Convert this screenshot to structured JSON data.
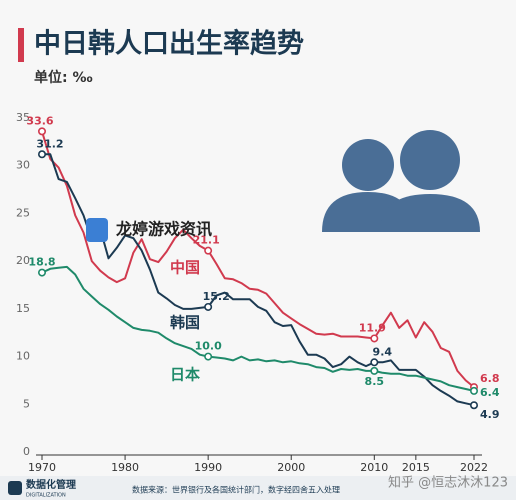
{
  "chart_data": {
    "type": "line",
    "title": "中日韩人口出生率趋势",
    "subtitle": "单位: ‰",
    "x": [
      1970,
      1971,
      1972,
      1973,
      1974,
      1975,
      1976,
      1977,
      1978,
      1979,
      1980,
      1981,
      1982,
      1983,
      1984,
      1985,
      1986,
      1987,
      1988,
      1989,
      1990,
      1991,
      1992,
      1993,
      1994,
      1995,
      1996,
      1997,
      1998,
      1999,
      2000,
      2001,
      2002,
      2003,
      2004,
      2005,
      2006,
      2007,
      2008,
      2009,
      2010,
      2011,
      2012,
      2013,
      2014,
      2015,
      2016,
      2017,
      2018,
      2019,
      2020,
      2021,
      2022
    ],
    "xlim": [
      1970,
      2022
    ],
    "xticks": [
      1970,
      1980,
      1990,
      2000,
      2010,
      2015,
      2022
    ],
    "ylim": [
      0,
      35
    ],
    "yticks": [
      0,
      5,
      10,
      15,
      20,
      25,
      30,
      35
    ],
    "grid": false,
    "series": [
      {
        "name": "中国",
        "color": "#d13a4e",
        "values": [
          33.6,
          30.7,
          29.8,
          27.9,
          24.8,
          23.0,
          20.0,
          19.0,
          18.3,
          17.8,
          18.2,
          20.9,
          22.3,
          20.2,
          19.9,
          21.0,
          22.4,
          23.3,
          22.4,
          21.6,
          21.1,
          19.7,
          18.2,
          18.1,
          17.7,
          17.1,
          17.0,
          16.6,
          15.6,
          14.6,
          14.0,
          13.4,
          12.9,
          12.4,
          12.3,
          12.4,
          12.1,
          12.1,
          12.1,
          12.0,
          11.9,
          13.3,
          14.6,
          13.0,
          13.8,
          12.0,
          13.6,
          12.6,
          10.9,
          10.5,
          8.5,
          7.5,
          6.8
        ],
        "value_labels": [
          "33.6",
          null,
          null,
          null,
          null,
          null,
          null,
          null,
          null,
          null,
          null,
          null,
          null,
          null,
          null,
          null,
          null,
          null,
          null,
          null,
          "21.1",
          null,
          null,
          null,
          null,
          null,
          null,
          null,
          null,
          null,
          null,
          null,
          null,
          null,
          null,
          null,
          null,
          null,
          null,
          null,
          "11.9",
          null,
          null,
          null,
          null,
          null,
          null,
          null,
          null,
          null,
          null,
          null,
          "6.8"
        ]
      },
      {
        "name": "韩国",
        "color": "#1c3a52",
        "values": [
          31.2,
          31.2,
          28.6,
          28.3,
          26.6,
          24.8,
          22.2,
          23.4,
          20.3,
          21.4,
          22.7,
          22.4,
          21.1,
          19.1,
          16.7,
          16.1,
          15.4,
          15.0,
          15.0,
          15.1,
          15.2,
          16.4,
          16.7,
          16.0,
          16.0,
          16.0,
          15.2,
          14.8,
          13.6,
          13.2,
          13.3,
          11.6,
          10.2,
          10.2,
          9.8,
          8.9,
          9.2,
          10.0,
          9.4,
          9.0,
          9.4,
          9.4,
          9.6,
          8.6,
          8.6,
          8.6,
          7.9,
          7.0,
          6.4,
          5.9,
          5.3,
          5.1,
          4.9
        ],
        "value_labels": [
          "31.2",
          null,
          null,
          null,
          null,
          null,
          null,
          null,
          null,
          null,
          null,
          null,
          null,
          null,
          null,
          null,
          null,
          null,
          null,
          null,
          "15.2",
          null,
          null,
          null,
          null,
          null,
          null,
          null,
          null,
          null,
          null,
          null,
          null,
          null,
          null,
          null,
          null,
          null,
          null,
          null,
          "9.4",
          null,
          null,
          null,
          null,
          null,
          null,
          null,
          null,
          null,
          null,
          null,
          "4.9"
        ]
      },
      {
        "name": "日本",
        "color": "#1f8a6a",
        "values": [
          18.8,
          19.2,
          19.3,
          19.4,
          18.6,
          17.1,
          16.3,
          15.5,
          14.9,
          14.2,
          13.6,
          13.0,
          12.8,
          12.7,
          12.5,
          11.9,
          11.4,
          11.1,
          10.8,
          10.2,
          10.0,
          9.9,
          9.8,
          9.6,
          10.0,
          9.6,
          9.7,
          9.5,
          9.6,
          9.4,
          9.5,
          9.3,
          9.2,
          8.9,
          8.8,
          8.4,
          8.7,
          8.6,
          8.7,
          8.5,
          8.5,
          8.3,
          8.2,
          8.2,
          8.0,
          8.0,
          7.8,
          7.6,
          7.4,
          7.0,
          6.8,
          6.6,
          6.4
        ],
        "value_labels": [
          "18.8",
          null,
          null,
          null,
          null,
          null,
          null,
          null,
          null,
          null,
          null,
          null,
          null,
          null,
          null,
          null,
          null,
          null,
          null,
          null,
          "10.0",
          null,
          null,
          null,
          null,
          null,
          null,
          null,
          null,
          null,
          null,
          null,
          null,
          null,
          null,
          null,
          null,
          null,
          null,
          null,
          "8.5",
          null,
          null,
          null,
          null,
          null,
          null,
          null,
          null,
          null,
          null,
          null,
          "6.4"
        ]
      }
    ]
  },
  "footer": {
    "brand": "数据化管理",
    "brand_sub": "DIGITALIZATION",
    "source": "数据来源：世界银行及各国统计部门，数字经四舍五入处理"
  },
  "watermarks": [
    "龙婷游戏资讯",
    "知乎 @恒志沐沐123"
  ]
}
